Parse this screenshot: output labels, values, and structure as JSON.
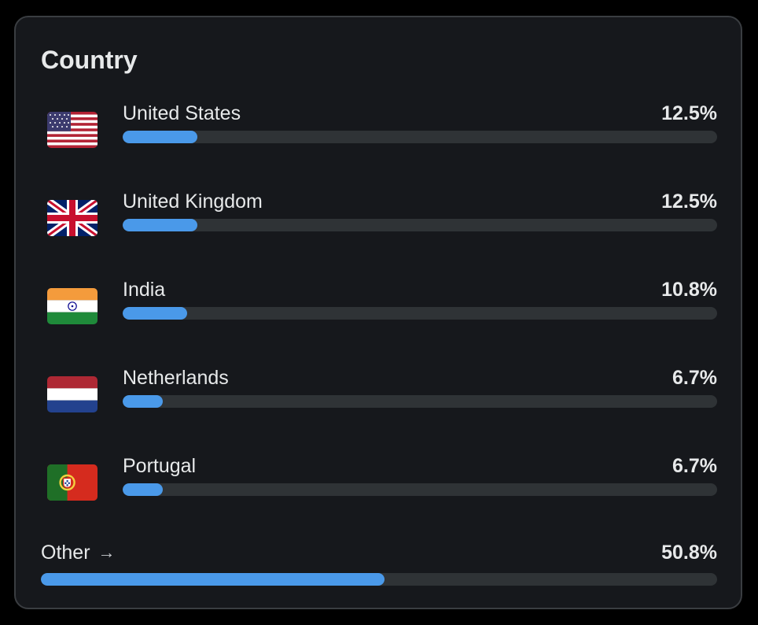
{
  "card": {
    "title": "Country",
    "rows": [
      {
        "label": "United States",
        "value": "12.5%",
        "fill_pct": 12.5,
        "flag_icon": "us-flag-icon"
      },
      {
        "label": "United Kingdom",
        "value": "12.5%",
        "fill_pct": 12.5,
        "flag_icon": "uk-flag-icon"
      },
      {
        "label": "India",
        "value": "10.8%",
        "fill_pct": 10.8,
        "flag_icon": "india-flag-icon"
      },
      {
        "label": "Netherlands",
        "value": "6.7%",
        "fill_pct": 6.7,
        "flag_icon": "netherlands-flag-icon"
      },
      {
        "label": "Portugal",
        "value": "6.7%",
        "fill_pct": 6.7,
        "flag_icon": "portugal-flag-icon"
      }
    ],
    "other": {
      "label": "Other",
      "arrow": "→",
      "value": "50.8%",
      "fill_pct": 50.8
    }
  },
  "colors": {
    "background": "#000000",
    "card": "#16181c",
    "border": "#3a3d41",
    "track": "#2f3336",
    "bar": "#4a99e9",
    "text": "#e7e9ea"
  }
}
